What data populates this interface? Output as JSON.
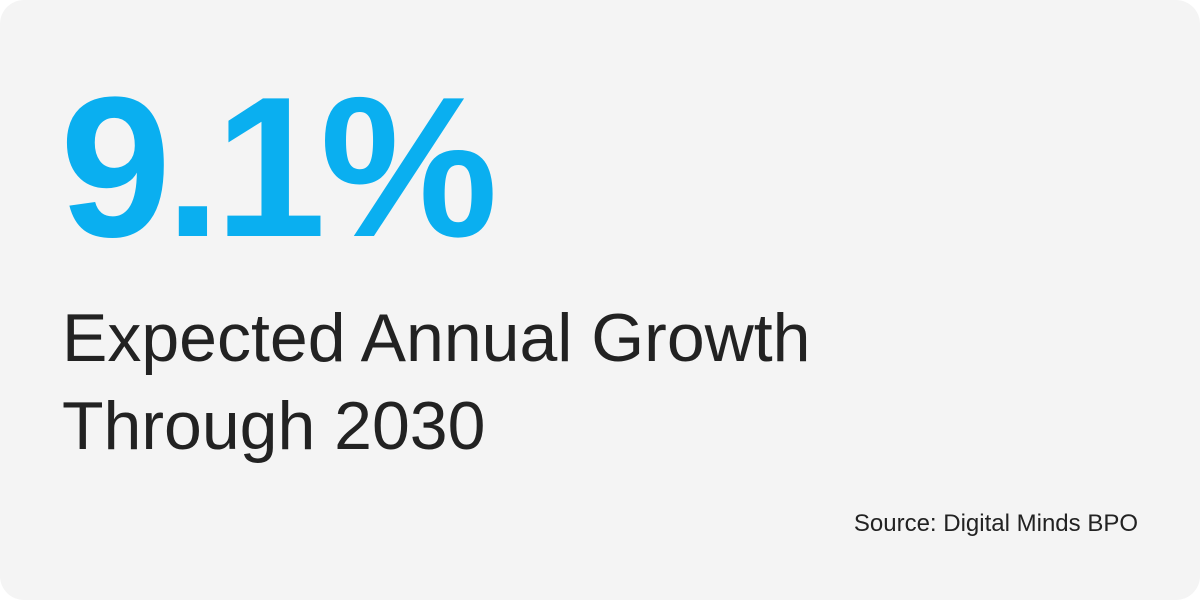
{
  "card": {
    "value": "9.1%",
    "label_line_1": "Expected Annual Growth",
    "label_line_2": "Through 2030",
    "source": "Source: Digital Minds BPO"
  },
  "colors": {
    "card_background": "#f4f4f4",
    "value": "#0aaff0",
    "label": "#222222",
    "source": "#222222"
  }
}
